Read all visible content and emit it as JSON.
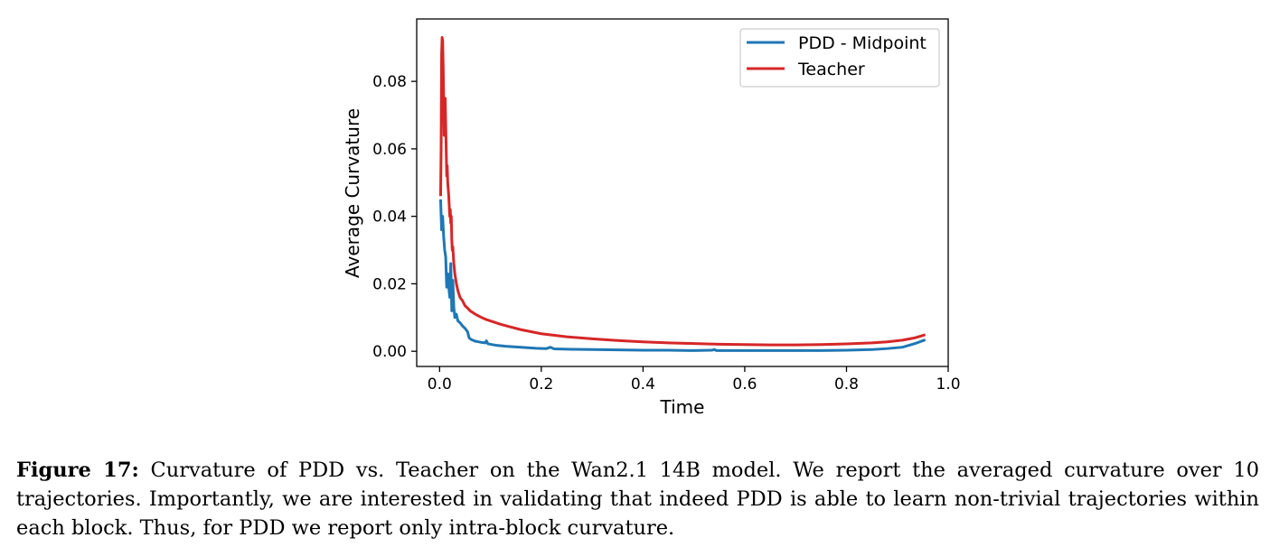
{
  "figure": {
    "label": "Figure 17:",
    "caption": "Curvature of PDD vs. Teacher on the Wan2.1 14B model. We report the averaged curvature over 10 trajectories. Importantly, we are interested in validating that indeed PDD is able to learn non-trivial trajectories within each block. Thus, for PDD we report only intra-block curvature."
  },
  "chart_data": {
    "type": "line",
    "title": "",
    "xlabel": "Time",
    "ylabel": "Average Curvature",
    "xlim": [
      -0.045,
      1.0
    ],
    "ylim": [
      -0.0045,
      0.0985
    ],
    "xticks": [
      0.0,
      0.2,
      0.4,
      0.6,
      0.8,
      1.0
    ],
    "xtick_labels": [
      "0.0",
      "0.2",
      "0.4",
      "0.6",
      "0.8",
      "1.0"
    ],
    "yticks": [
      0.0,
      0.02,
      0.04,
      0.06,
      0.08
    ],
    "ytick_labels": [
      "0.00",
      "0.02",
      "0.04",
      "0.06",
      "0.08"
    ],
    "grid": false,
    "legend_position": "upper right",
    "series": [
      {
        "name": "PDD - Midpoint",
        "color": "#1f77b4",
        "points": [
          [
            0.002,
            0.045
          ],
          [
            0.004,
            0.036
          ],
          [
            0.006,
            0.04
          ],
          [
            0.008,
            0.034
          ],
          [
            0.01,
            0.03
          ],
          [
            0.012,
            0.028
          ],
          [
            0.014,
            0.019
          ],
          [
            0.016,
            0.023
          ],
          [
            0.018,
            0.019
          ],
          [
            0.02,
            0.016
          ],
          [
            0.022,
            0.026
          ],
          [
            0.024,
            0.012
          ],
          [
            0.026,
            0.021
          ],
          [
            0.028,
            0.013
          ],
          [
            0.03,
            0.01
          ],
          [
            0.033,
            0.011
          ],
          [
            0.036,
            0.009
          ],
          [
            0.04,
            0.0085
          ],
          [
            0.045,
            0.0075
          ],
          [
            0.05,
            0.0068
          ],
          [
            0.055,
            0.0058
          ],
          [
            0.058,
            0.004
          ],
          [
            0.062,
            0.0035
          ],
          [
            0.07,
            0.003
          ],
          [
            0.08,
            0.0027
          ],
          [
            0.09,
            0.0025
          ],
          [
            0.092,
            0.0031
          ],
          [
            0.095,
            0.0022
          ],
          [
            0.11,
            0.0018
          ],
          [
            0.13,
            0.0015
          ],
          [
            0.15,
            0.0013
          ],
          [
            0.17,
            0.0011
          ],
          [
            0.19,
            0.0009
          ],
          [
            0.21,
            0.0008
          ],
          [
            0.218,
            0.0012
          ],
          [
            0.225,
            0.0007
          ],
          [
            0.26,
            0.0006
          ],
          [
            0.3,
            0.0005
          ],
          [
            0.35,
            0.0004
          ],
          [
            0.4,
            0.0003
          ],
          [
            0.45,
            0.0003
          ],
          [
            0.5,
            0.0002
          ],
          [
            0.535,
            0.0003
          ],
          [
            0.54,
            0.0005
          ],
          [
            0.545,
            0.0002
          ],
          [
            0.6,
            0.0002
          ],
          [
            0.65,
            0.0002
          ],
          [
            0.7,
            0.0002
          ],
          [
            0.75,
            0.0002
          ],
          [
            0.8,
            0.0003
          ],
          [
            0.85,
            0.0005
          ],
          [
            0.88,
            0.0008
          ],
          [
            0.91,
            0.0012
          ],
          [
            0.935,
            0.0023
          ],
          [
            0.955,
            0.0034
          ]
        ]
      },
      {
        "name": "Teacher",
        "color": "#d62728",
        "points": [
          [
            0.002,
            0.046
          ],
          [
            0.003,
            0.06
          ],
          [
            0.004,
            0.088
          ],
          [
            0.005,
            0.093
          ],
          [
            0.006,
            0.092
          ],
          [
            0.007,
            0.085
          ],
          [
            0.008,
            0.075
          ],
          [
            0.009,
            0.064
          ],
          [
            0.01,
            0.07
          ],
          [
            0.011,
            0.075
          ],
          [
            0.012,
            0.067
          ],
          [
            0.013,
            0.06
          ],
          [
            0.014,
            0.052
          ],
          [
            0.015,
            0.055
          ],
          [
            0.016,
            0.05
          ],
          [
            0.017,
            0.048
          ],
          [
            0.018,
            0.046
          ],
          [
            0.019,
            0.043
          ],
          [
            0.02,
            0.04
          ],
          [
            0.021,
            0.042
          ],
          [
            0.022,
            0.038
          ],
          [
            0.023,
            0.04
          ],
          [
            0.024,
            0.033
          ],
          [
            0.025,
            0.03
          ],
          [
            0.026,
            0.031
          ],
          [
            0.028,
            0.026
          ],
          [
            0.03,
            0.023
          ],
          [
            0.033,
            0.02
          ],
          [
            0.036,
            0.018
          ],
          [
            0.04,
            0.016
          ],
          [
            0.045,
            0.015
          ],
          [
            0.05,
            0.0135
          ],
          [
            0.055,
            0.0128
          ],
          [
            0.06,
            0.012
          ],
          [
            0.07,
            0.011
          ],
          [
            0.08,
            0.0102
          ],
          [
            0.09,
            0.0095
          ],
          [
            0.1,
            0.009
          ],
          [
            0.12,
            0.008
          ],
          [
            0.14,
            0.0072
          ],
          [
            0.16,
            0.0064
          ],
          [
            0.18,
            0.0058
          ],
          [
            0.2,
            0.0052
          ],
          [
            0.25,
            0.0043
          ],
          [
            0.3,
            0.0037
          ],
          [
            0.35,
            0.0032
          ],
          [
            0.4,
            0.0028
          ],
          [
            0.45,
            0.0025
          ],
          [
            0.5,
            0.0023
          ],
          [
            0.55,
            0.0021
          ],
          [
            0.6,
            0.002
          ],
          [
            0.65,
            0.0019
          ],
          [
            0.7,
            0.0019
          ],
          [
            0.75,
            0.002
          ],
          [
            0.8,
            0.0022
          ],
          [
            0.85,
            0.0025
          ],
          [
            0.88,
            0.0028
          ],
          [
            0.91,
            0.0033
          ],
          [
            0.935,
            0.004
          ],
          [
            0.955,
            0.0049
          ]
        ]
      }
    ]
  }
}
